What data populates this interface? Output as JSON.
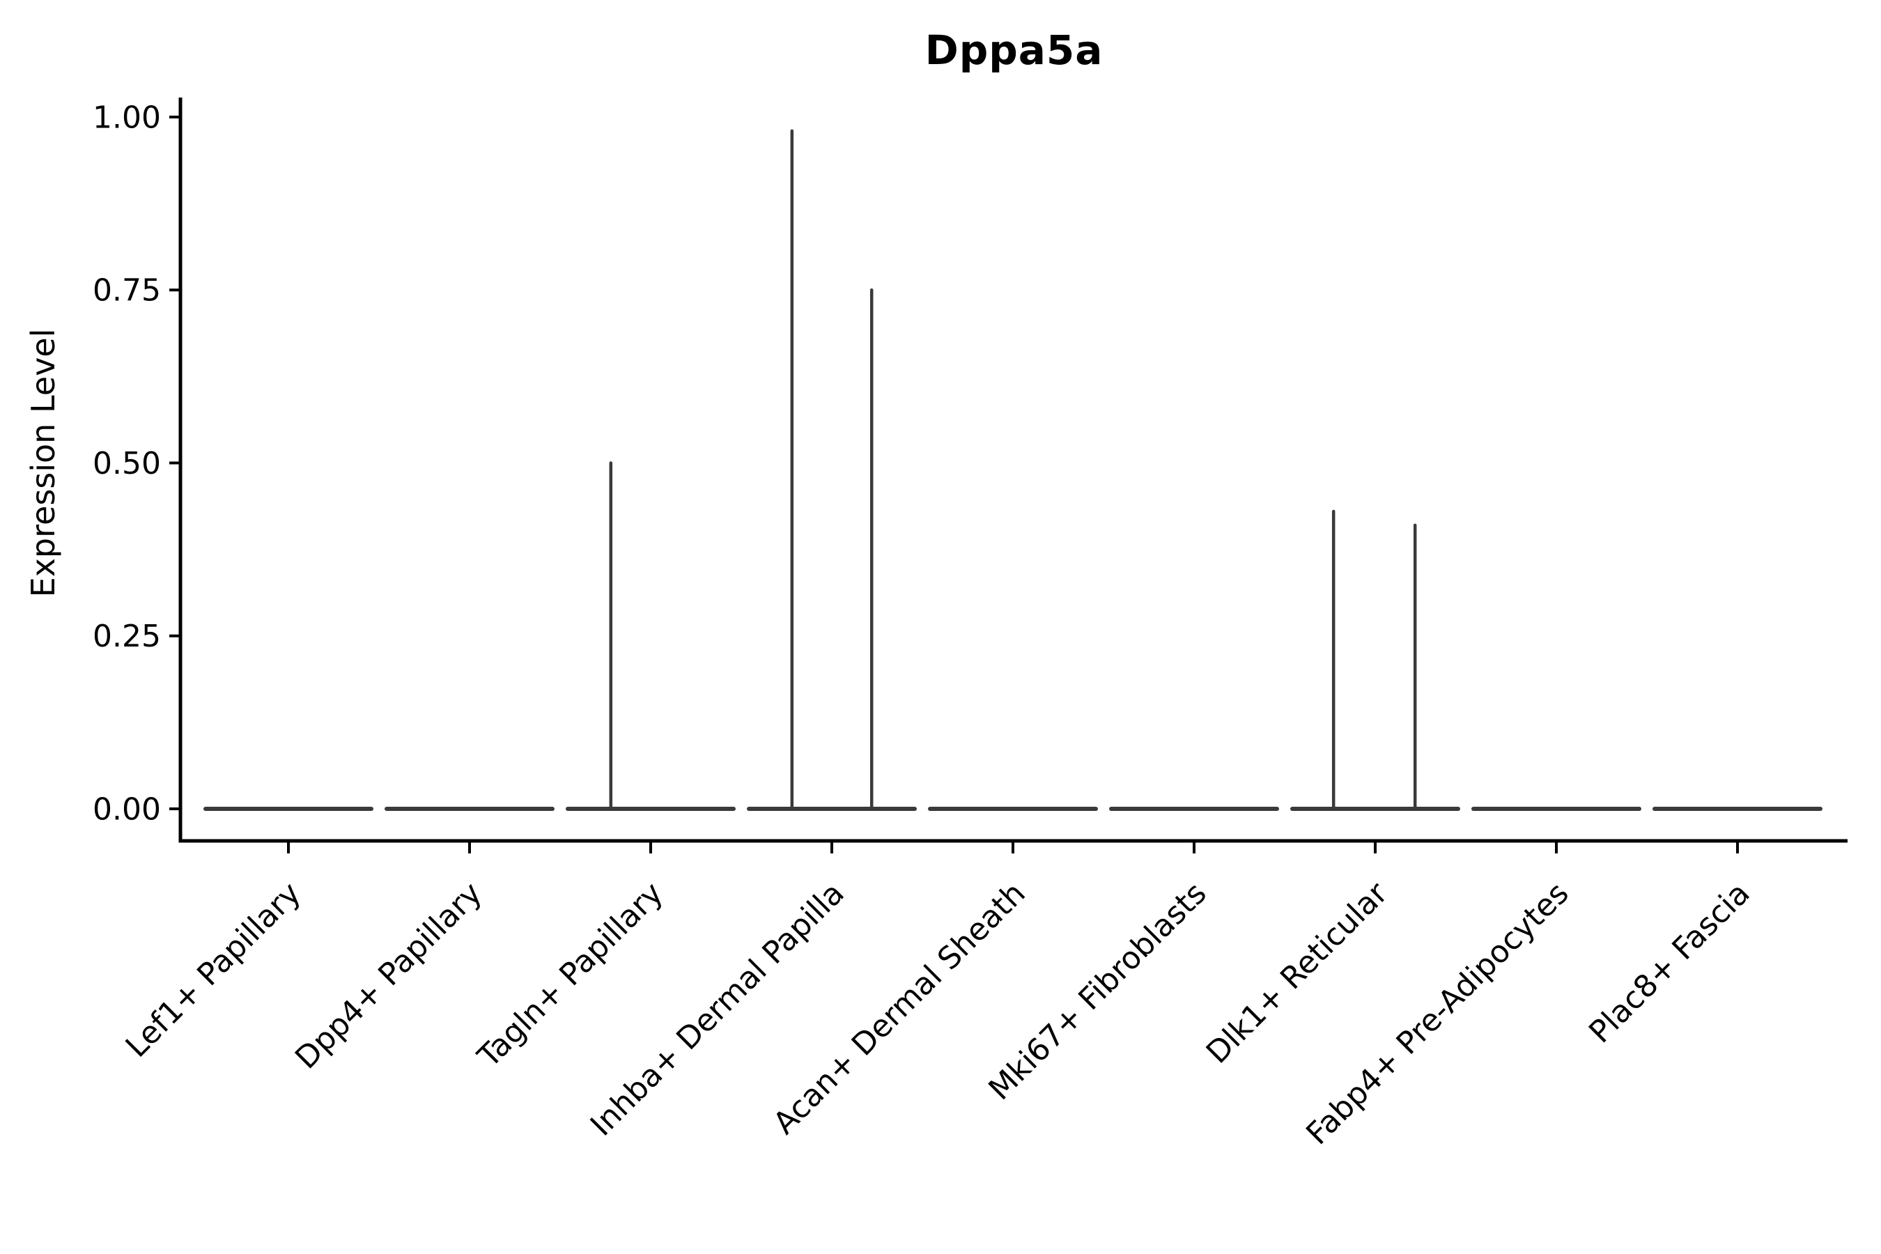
{
  "chart_data": {
    "type": "violin",
    "title": "Dppa5a",
    "xlabel": "",
    "ylabel": "Expression Level",
    "ylim": [
      0.0,
      1.0
    ],
    "grid": false,
    "legend": null,
    "axis_color": "#000000",
    "violin_color": "#3a3a3a",
    "yticks": [
      {
        "label": "0.00",
        "value": 0.0
      },
      {
        "label": "0.25",
        "value": 0.25
      },
      {
        "label": "0.50",
        "value": 0.5
      },
      {
        "label": "0.75",
        "value": 0.75
      },
      {
        "label": "1.00",
        "value": 1.0
      }
    ],
    "categories": [
      "Lef1+ Papillary",
      "Dpp4+ Papillary",
      "Tagln+ Papillary",
      "Inhba+ Dermal Papilla",
      "Acan+ Dermal Sheath",
      "Mki67+ Fibroblasts",
      "Dlk1+ Reticular",
      "Fabp4+ Pre-Adipocytes",
      "Plac8+ Fascia"
    ],
    "violins": [
      {
        "category": "Lef1+ Papillary",
        "baseline_value": 0.0,
        "spikes": []
      },
      {
        "category": "Dpp4+ Papillary",
        "baseline_value": 0.0,
        "spikes": []
      },
      {
        "category": "Tagln+ Papillary",
        "baseline_value": 0.0,
        "spikes": [
          {
            "offset": -0.22,
            "value": 0.5
          }
        ]
      },
      {
        "category": "Inhba+ Dermal Papilla",
        "baseline_value": 0.0,
        "spikes": [
          {
            "offset": -0.22,
            "value": 0.98
          },
          {
            "offset": 0.22,
            "value": 0.75
          }
        ]
      },
      {
        "category": "Acan+ Dermal Sheath",
        "baseline_value": 0.0,
        "spikes": []
      },
      {
        "category": "Mki67+ Fibroblasts",
        "baseline_value": 0.0,
        "spikes": []
      },
      {
        "category": "Dlk1+ Reticular",
        "baseline_value": 0.0,
        "spikes": [
          {
            "offset": -0.23,
            "value": 0.43
          },
          {
            "offset": 0.22,
            "value": 0.41
          }
        ]
      },
      {
        "category": "Fabp4+ Pre-Adipocytes",
        "baseline_value": 0.0,
        "spikes": []
      },
      {
        "category": "Plac8+ Fascia",
        "baseline_value": 0.0,
        "spikes": []
      }
    ]
  }
}
